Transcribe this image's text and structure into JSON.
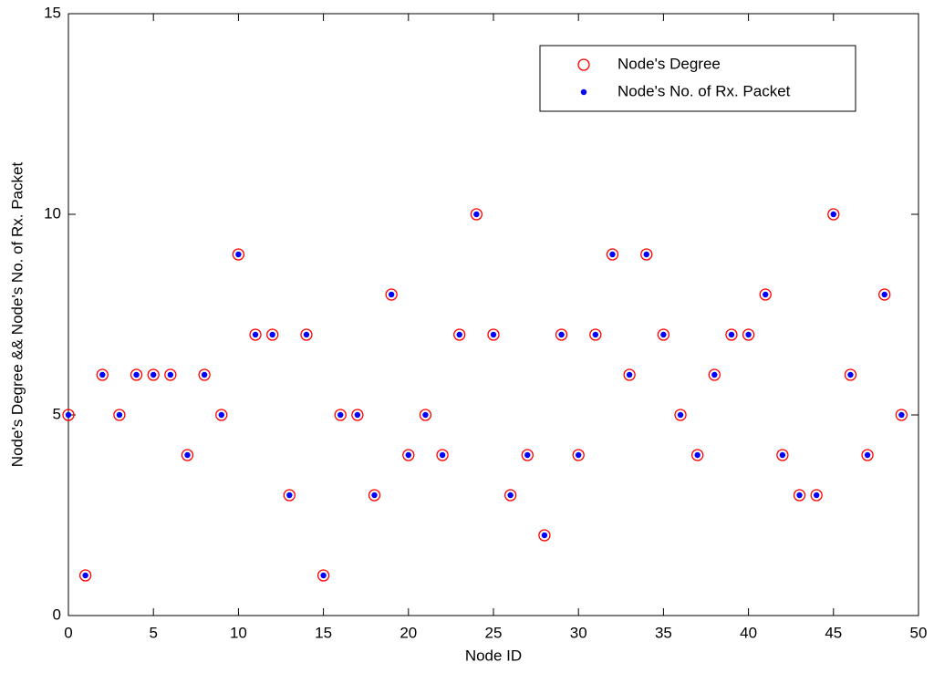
{
  "chart_data": {
    "type": "scatter",
    "x_label": "Node ID",
    "y_label": "Node's Degree && Node's No. of Rx. Packet",
    "x": [
      0,
      1,
      2,
      3,
      4,
      5,
      6,
      7,
      8,
      9,
      10,
      11,
      12,
      13,
      14,
      15,
      16,
      17,
      18,
      19,
      20,
      21,
      22,
      23,
      24,
      25,
      26,
      27,
      28,
      29,
      30,
      31,
      32,
      33,
      34,
      35,
      36,
      37,
      38,
      39,
      40,
      41,
      42,
      43,
      44,
      45,
      46,
      47,
      48,
      49
    ],
    "series": [
      {
        "name": "Node's Degree",
        "color": "#ff0000",
        "marker": "circle",
        "values": [
          5,
          1,
          6,
          5,
          6,
          6,
          6,
          4,
          6,
          5,
          9,
          7,
          7,
          3,
          7,
          1,
          5,
          5,
          3,
          8,
          4,
          5,
          4,
          7,
          10,
          7,
          3,
          4,
          2,
          7,
          4,
          7,
          9,
          6,
          9,
          7,
          5,
          4,
          6,
          7,
          7,
          8,
          4,
          3,
          3,
          10,
          6,
          4,
          8,
          5
        ]
      },
      {
        "name": "Node's No. of Rx. Packet",
        "color": "#0000ff",
        "marker": "dot",
        "values": [
          5,
          1,
          6,
          5,
          6,
          6,
          6,
          4,
          6,
          5,
          9,
          7,
          7,
          3,
          7,
          1,
          5,
          5,
          3,
          8,
          4,
          5,
          4,
          7,
          10,
          7,
          3,
          4,
          2,
          7,
          4,
          7,
          9,
          6,
          9,
          7,
          5,
          4,
          6,
          7,
          7,
          8,
          4,
          3,
          3,
          10,
          6,
          4,
          8,
          5
        ]
      }
    ],
    "xlim": [
      0,
      50
    ],
    "xticks": [
      0,
      5,
      10,
      15,
      20,
      25,
      30,
      35,
      40,
      45,
      50
    ],
    "ylim": [
      0,
      15
    ],
    "yticks": [
      0,
      5,
      10,
      15
    ],
    "grid": false,
    "legend": "top-right"
  }
}
